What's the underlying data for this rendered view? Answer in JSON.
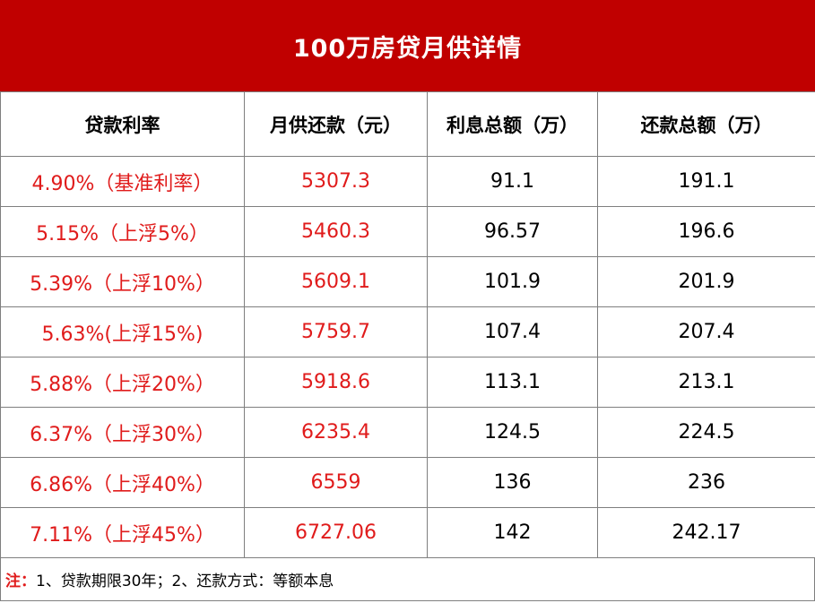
{
  "title": "100万房贷月供详情",
  "headers": [
    "贷款利率",
    "月供还款（元）",
    "利息总额（万）",
    "还款总额（万）"
  ],
  "rows": [
    [
      "4.90%（基准利率）",
      "5307.3",
      "91.1",
      "191.1"
    ],
    [
      "5.15%（上浮5%）",
      "5460.3",
      "96.57",
      "196.6"
    ],
    [
      "5.39%（上浮10%）",
      "5609.1",
      "101.9",
      "201.9"
    ],
    [
      "5.63%(上浮15%)",
      "5759.7",
      "107.4",
      "207.4"
    ],
    [
      "5.88%（上浮20%）",
      "5918.6",
      "113.1",
      "213.1"
    ],
    [
      "6.37%（上浮30%）",
      "6235.4",
      "124.5",
      "224.5"
    ],
    [
      "6.86%（上浮40%）",
      "6559",
      "136",
      "236"
    ],
    [
      "7.11%（上浮45%）",
      "6727.06",
      "142",
      "242.17"
    ]
  ],
  "note": {
    "label": "注：",
    "text": "1、贷款期限30年；2、还款方式：等额本息"
  },
  "colors": {
    "title_bg": "#c00000",
    "red_text": "#e01b1b",
    "border": "#7f7f7f"
  }
}
